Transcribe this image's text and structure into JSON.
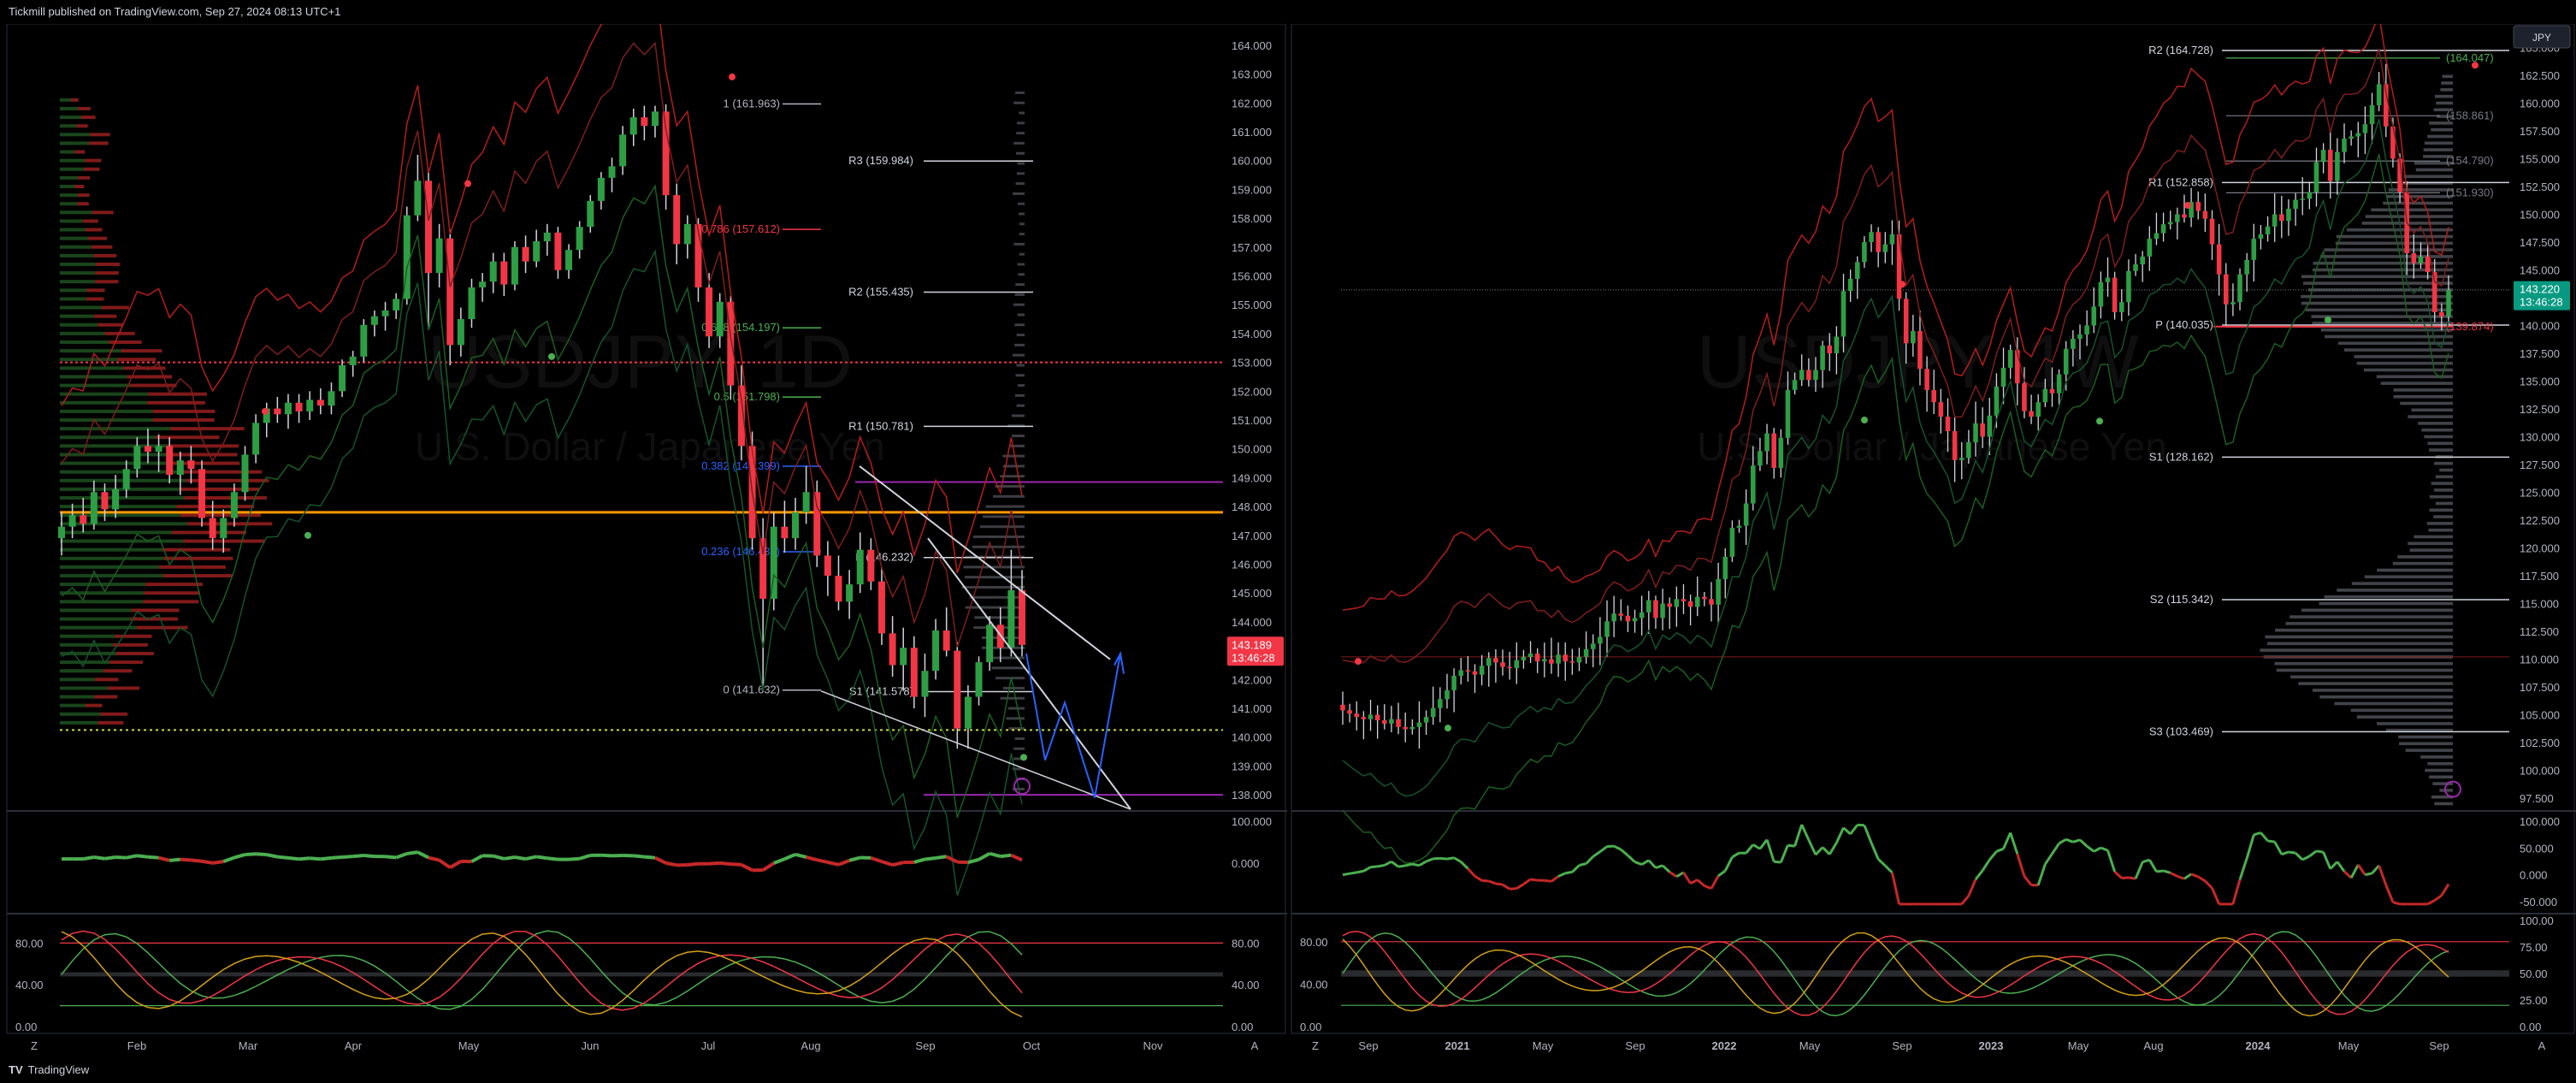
{
  "header": {
    "published": "Tickmill published on TradingView.com, Sep 27, 2024 08:13 UTC+1"
  },
  "footer": {
    "brand_mark": "TV",
    "brand": "TradingView"
  },
  "colors": {
    "up": "#26a69a",
    "up_green": "#2e9e44",
    "down": "#f23645",
    "price_tag": "#f23645",
    "price_tag_right": "#089981",
    "band_red": "#b71c1c",
    "band_green": "#1b5e20",
    "orange": "#ff9800",
    "purple": "#9c27b0",
    "blue": "#2962ff"
  },
  "chart_data": [
    {
      "type": "candlestick",
      "symbol": "USDJPY",
      "interval": "1D",
      "description": "U.S. Dollar / Japanese Yen",
      "ylim": [
        137.5,
        164.5
      ],
      "y_ticks": [
        "164.000",
        "163.000",
        "162.000",
        "161.000",
        "160.000",
        "159.000",
        "158.000",
        "157.000",
        "156.000",
        "155.000",
        "154.000",
        "153.000",
        "152.000",
        "151.000",
        "150.000",
        "149.000",
        "148.000",
        "147.000",
        "146.000",
        "145.000",
        "144.000",
        "143.000",
        "142.000",
        "141.000",
        "140.000",
        "139.000",
        "138.000"
      ],
      "x_ticks": [
        "Feb",
        "Mar",
        "Apr",
        "May",
        "Jun",
        "Jul",
        "Aug",
        "Sep",
        "Oct",
        "Nov"
      ],
      "last_price": "143.189",
      "countdown": "13:46:28",
      "fib_levels": [
        {
          "label": "1 (161.963)",
          "value": 161.963,
          "color": "#b2b5be"
        },
        {
          "label": "0.786 (157.612)",
          "value": 157.612,
          "color": "#f23645"
        },
        {
          "label": "0.618 (154.197)",
          "value": 154.197,
          "color": "#4caf50"
        },
        {
          "label": "0.5 (151.798)",
          "value": 151.798,
          "color": "#4caf50"
        },
        {
          "label": "0.382 (149.399)",
          "value": 149.399,
          "color": "#2962ff"
        },
        {
          "label": "0.236 (146.430)",
          "value": 146.43,
          "color": "#2962ff"
        },
        {
          "label": "0 (141.632)",
          "value": 141.632,
          "color": "#b2b5be"
        }
      ],
      "pivots": [
        {
          "label": "R3 (159.984)",
          "value": 159.984
        },
        {
          "label": "R2 (155.435)",
          "value": 155.435
        },
        {
          "label": "R1 (150.781)",
          "value": 150.781
        },
        {
          "label": "P (146.232)",
          "value": 146.232
        },
        {
          "label": "S1 (141.578)",
          "value": 141.578
        }
      ],
      "candles": [
        [
          146.9,
          147.8,
          146.3,
          147.3
        ],
        [
          147.3,
          148.1,
          146.9,
          147.7
        ],
        [
          147.7,
          148.3,
          147.1,
          147.4
        ],
        [
          147.4,
          148.9,
          147.2,
          148.5
        ],
        [
          148.5,
          148.8,
          147.5,
          147.9
        ],
        [
          147.9,
          149.1,
          147.6,
          148.6
        ],
        [
          148.6,
          149.6,
          148.3,
          149.3
        ],
        [
          149.3,
          150.4,
          149,
          150.1
        ],
        [
          150.1,
          150.7,
          149.5,
          149.9
        ],
        [
          149.9,
          150.5,
          149.2,
          150.1
        ],
        [
          150.1,
          150.4,
          148.8,
          149.1
        ],
        [
          149.1,
          149.9,
          148.4,
          149.6
        ],
        [
          149.6,
          150.1,
          148.8,
          149.3
        ],
        [
          149.3,
          149.6,
          147.3,
          147.6
        ],
        [
          147.6,
          148.2,
          146.5,
          146.9
        ],
        [
          146.9,
          147.9,
          146.4,
          147.6
        ],
        [
          147.6,
          148.8,
          147.3,
          148.5
        ],
        [
          148.5,
          150.1,
          148.2,
          149.8
        ],
        [
          149.8,
          151.2,
          149.5,
          150.9
        ],
        [
          150.9,
          151.6,
          150.4,
          151.4
        ],
        [
          151.4,
          151.8,
          150.9,
          151.2
        ],
        [
          151.2,
          151.9,
          150.7,
          151.6
        ],
        [
          151.6,
          151.9,
          150.9,
          151.3
        ],
        [
          151.3,
          152,
          151,
          151.7
        ],
        [
          151.7,
          152.1,
          151.2,
          151.5
        ],
        [
          151.5,
          152.3,
          151.2,
          152.0
        ],
        [
          152.0,
          153.1,
          151.8,
          152.9
        ],
        [
          152.9,
          153.4,
          152.5,
          153.2
        ],
        [
          153.2,
          154.5,
          153,
          154.3
        ],
        [
          154.3,
          154.8,
          153.9,
          154.6
        ],
        [
          154.6,
          155.1,
          154.1,
          154.8
        ],
        [
          154.8,
          155.4,
          154.5,
          155.2
        ],
        [
          155.2,
          158.4,
          155,
          158.1
        ],
        [
          158.1,
          160.2,
          157.9,
          159.3
        ],
        [
          159.3,
          159.6,
          154.2,
          156.1
        ],
        [
          156.1,
          157.8,
          155.6,
          157.3
        ],
        [
          157.3,
          157.6,
          152.9,
          153.6
        ],
        [
          153.6,
          154.9,
          153.2,
          154.5
        ],
        [
          154.5,
          155.9,
          154.2,
          155.6
        ],
        [
          155.6,
          156.1,
          155.1,
          155.8
        ],
        [
          155.8,
          156.8,
          155.4,
          156.5
        ],
        [
          156.5,
          156.8,
          155.3,
          155.7
        ],
        [
          155.7,
          157.2,
          155.5,
          157.0
        ],
        [
          157.0,
          157.4,
          156.1,
          156.5
        ],
        [
          156.5,
          157.6,
          156.3,
          157.2
        ],
        [
          157.2,
          157.8,
          156.7,
          157.5
        ],
        [
          157.5,
          157.7,
          155.9,
          156.2
        ],
        [
          156.2,
          157.1,
          155.9,
          156.9
        ],
        [
          156.9,
          157.9,
          156.6,
          157.7
        ],
        [
          157.7,
          158.8,
          157.5,
          158.6
        ],
        [
          158.6,
          159.6,
          158.3,
          159.4
        ],
        [
          159.4,
          160.1,
          158.9,
          159.8
        ],
        [
          159.8,
          161.2,
          159.5,
          160.9
        ],
        [
          160.9,
          161.8,
          160.5,
          161.5
        ],
        [
          161.5,
          161.9,
          160.7,
          161.2
        ],
        [
          161.2,
          161.9,
          160.8,
          161.7
        ],
        [
          161.7,
          161.95,
          158.3,
          158.8
        ],
        [
          158.8,
          159.2,
          156.4,
          157.1
        ],
        [
          157.1,
          158.1,
          156.6,
          157.8
        ],
        [
          157.8,
          158,
          155.1,
          155.6
        ],
        [
          155.6,
          156.1,
          153.5,
          153.9
        ],
        [
          153.9,
          155.4,
          153.5,
          155.1
        ],
        [
          155.1,
          155.3,
          151.7,
          152.2
        ],
        [
          152.2,
          152.9,
          149.6,
          150.1
        ],
        [
          150.1,
          150.6,
          146.5,
          146.9
        ],
        [
          146.9,
          147.6,
          141.7,
          144.8
        ],
        [
          144.8,
          147.8,
          144.4,
          147.3
        ],
        [
          147.3,
          148.2,
          146.4,
          146.9
        ],
        [
          146.9,
          148.3,
          146.5,
          147.8
        ],
        [
          147.8,
          149.4,
          147.4,
          148.5
        ],
        [
          148.5,
          148.9,
          145.9,
          146.3
        ],
        [
          146.3,
          146.8,
          144.9,
          145.6
        ],
        [
          145.6,
          146.3,
          144.4,
          144.7
        ],
        [
          144.7,
          145.8,
          144.1,
          145.3
        ],
        [
          145.3,
          147.1,
          145,
          146.5
        ],
        [
          146.5,
          146.9,
          145.1,
          145.4
        ],
        [
          145.4,
          145.9,
          143.2,
          143.6
        ],
        [
          143.6,
          144.2,
          142.1,
          142.5
        ],
        [
          142.5,
          143.8,
          141.6,
          143.1
        ],
        [
          143.1,
          143.5,
          141,
          141.4
        ],
        [
          141.4,
          142.9,
          140.7,
          142.3
        ],
        [
          142.3,
          144.1,
          142,
          143.7
        ],
        [
          143.7,
          144.5,
          142.8,
          143.0
        ],
        [
          143.0,
          143.3,
          139.6,
          140.3
        ],
        [
          140.3,
          141.8,
          139.6,
          141.4
        ],
        [
          141.4,
          142.8,
          141.1,
          142.6
        ],
        [
          142.6,
          144.2,
          142.3,
          143.9
        ],
        [
          143.9,
          144.5,
          142.6,
          143.1
        ],
        [
          143.1,
          146.5,
          142.8,
          145.1
        ],
        [
          145.1,
          145.8,
          142.8,
          143.2
        ]
      ],
      "oscillator1": {
        "zero_label": "0.000",
        "top_label": "100.000"
      },
      "oscillator2": {
        "labels": [
          "80.00",
          "40.00",
          "0.00"
        ]
      }
    },
    {
      "type": "candlestick",
      "symbol": "USDJPY",
      "interval": "1W",
      "description": "U.S. Dollar / Japanese Yen",
      "ylim": [
        96.5,
        166.5
      ],
      "y_ticks": [
        "165.000",
        "162.500",
        "160.000",
        "157.500",
        "155.000",
        "152.500",
        "150.000",
        "147.500",
        "145.000",
        "142.500",
        "140.000",
        "137.500",
        "135.000",
        "132.500",
        "130.000",
        "127.500",
        "125.000",
        "122.500",
        "120.000",
        "117.500",
        "115.000",
        "112.500",
        "110.000",
        "107.500",
        "105.000",
        "102.500",
        "100.000",
        "97.500"
      ],
      "x_ticks": [
        "Sep",
        "2021",
        "May",
        "Sep",
        "2022",
        "May",
        "Sep",
        "2023",
        "May",
        "Aug",
        "2024",
        "May",
        "Sep"
      ],
      "currency_button": "JPY",
      "last_price": "143.220",
      "countdown": "13:46:28",
      "pivots": [
        {
          "label": "R2 (164.728)",
          "value": 164.728
        },
        {
          "label": "R1 (152.858)",
          "value": 152.858
        },
        {
          "label": "P (140.035)",
          "value": 140.035
        },
        {
          "label": "S1 (128.162)",
          "value": 128.162
        },
        {
          "label": "S2 (115.342)",
          "value": 115.342
        },
        {
          "label": "S3 (103.469)",
          "value": 103.469
        }
      ],
      "right_labels": [
        {
          "label": "(164.047)",
          "value": 164.047,
          "color": "#4caf50"
        },
        {
          "label": "(158.861)",
          "value": 158.861,
          "color": "#787b86"
        },
        {
          "label": "(154.790)",
          "value": 154.79,
          "color": "#787b86"
        },
        {
          "label": "(151.930)",
          "value": 151.93,
          "color": "#787b86"
        },
        {
          "label": "(139.874)",
          "value": 139.874,
          "color": "#f23645"
        }
      ],
      "closes": [
        105.4,
        105.1,
        104.8,
        104.6,
        105.0,
        104.5,
        104.2,
        104.6,
        103.9,
        103.7,
        103.9,
        104.3,
        104.8,
        105.6,
        106.4,
        107.2,
        108.5,
        109.0,
        108.9,
        108.6,
        109.4,
        110.1,
        109.7,
        109.3,
        109.2,
        109.9,
        110.2,
        110.5,
        109.8,
        110.0,
        109.6,
        110.4,
        109.8,
        109.7,
        110.2,
        110.9,
        111.4,
        112.0,
        113.4,
        114.1,
        113.9,
        113.4,
        113.7,
        114.2,
        115.3,
        113.7,
        115.0,
        114.7,
        115.4,
        115.2,
        114.7,
        115.6,
        115.4,
        114.9,
        117.2,
        119.2,
        121.8,
        122.0,
        124.0,
        127.4,
        128.7,
        130.3,
        127.2,
        129.9,
        134.2,
        135.1,
        136.0,
        135.1,
        136.0,
        138.2,
        137.5,
        139.0,
        143.1,
        144.2,
        145.7,
        147.5,
        148.4,
        146.6,
        147.3,
        148.2,
        142.4,
        138.4,
        139.5,
        136.1,
        134.2,
        133.1,
        131.8,
        130.5,
        127.9,
        128.1,
        129.5,
        131.2,
        130.0,
        131.9,
        134.5,
        136.2,
        137.8,
        134.8,
        132.3,
        131.8,
        133.1,
        134.3,
        133.9,
        135.6,
        137.9,
        138.8,
        139.2,
        140.0,
        141.7,
        143.9,
        144.3,
        141.2,
        142.1,
        144.9,
        145.5,
        146.2,
        147.8,
        148.3,
        149.1,
        149.3,
        150.0,
        149.7,
        151.1,
        150.3,
        149.6,
        147.3,
        144.6,
        141.9,
        142.1,
        144.6,
        145.9,
        147.8,
        148.2,
        148.9,
        150.0,
        149.4,
        150.5,
        151.3,
        151.4,
        152.0,
        154.7,
        155.8,
        153.0,
        155.6,
        156.8,
        157.0,
        157.3,
        158.1,
        159.8,
        161.7,
        157.9,
        155.0,
        152.0,
        146.5,
        145.6,
        146.2,
        144.8,
        141.2,
        140.8,
        143.2
      ],
      "oscillator1": {
        "labels": [
          "100.000",
          "50.000",
          "0.000",
          "-50.000"
        ]
      },
      "oscillator2": {
        "labels": [
          "100.00",
          "75.00",
          "50.00",
          "25.00",
          "0.00"
        ]
      }
    }
  ]
}
